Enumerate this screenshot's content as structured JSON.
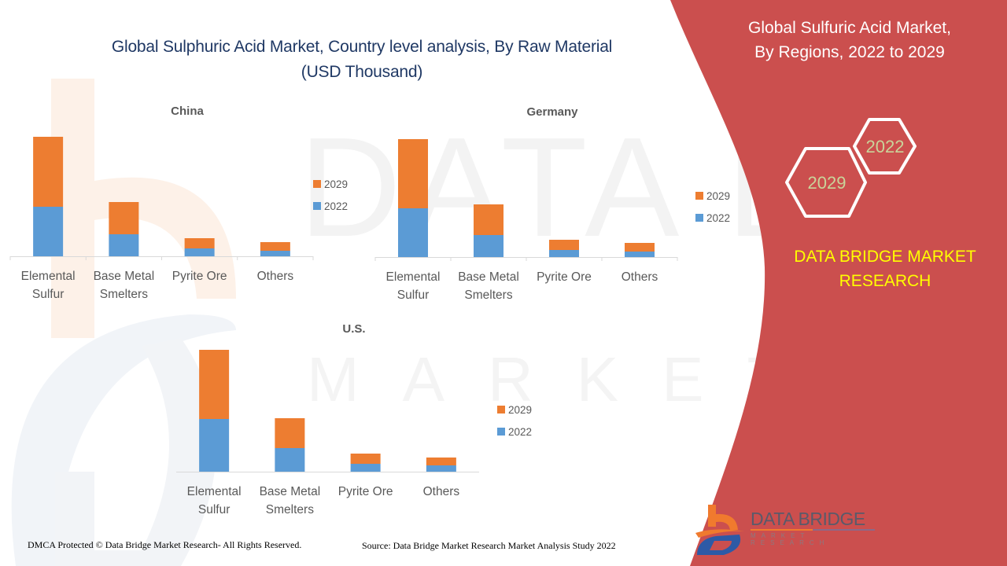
{
  "page": {
    "main_title_line1": "Global Sulphuric Acid Market, Country level analysis, By Raw Material",
    "main_title_line2": "(USD Thousand)",
    "side_title_line1": "Global Sulfuric Acid Market,",
    "side_title_line2": "By Regions, 2022 to 2029",
    "hex_labels": [
      "2022",
      "2029"
    ],
    "brand_line1": "DATA BRIDGE MARKET",
    "brand_line2": "RESEARCH",
    "logo_text": "DATA BRIDGE",
    "logo_subtext": "MARKET RESEARCH",
    "footer_left": "DMCA Protected © Data Bridge Market Research- All Rights Reserved.",
    "footer_right": "Source: Data Bridge Market Research Market Analysis Study 2022",
    "colors": {
      "panel_red": "#cb4f4e",
      "title_navy": "#1f3864",
      "brand_yellow": "#ffff00",
      "series_2022": "#5b9bd5",
      "series_2029": "#ed7d31"
    }
  },
  "chart_data": [
    {
      "type": "bar",
      "stacked": true,
      "title": "China",
      "categories": [
        "Elemental Sulfur",
        "Base Metal Smelters",
        "Pyrite Ore",
        "Others"
      ],
      "category_lines": [
        [
          "Elemental",
          "Sulfur"
        ],
        [
          "Base Metal",
          "Smelters"
        ],
        [
          "Pyrite Ore"
        ],
        [
          "Others"
        ]
      ],
      "series": [
        {
          "name": "2022",
          "color": "#5b9bd5",
          "values": [
            63,
            28,
            10,
            7
          ]
        },
        {
          "name": "2029",
          "color": "#ed7d31",
          "values": [
            89,
            41,
            13,
            11
          ]
        }
      ],
      "legend": [
        "2029",
        "2022"
      ],
      "legend_position": "right",
      "ylim": [
        0,
        160
      ],
      "xlabel": "",
      "ylabel": "",
      "grid": false,
      "ticks": true
    },
    {
      "type": "bar",
      "stacked": true,
      "title": "Germany",
      "categories": [
        "Elemental Sulfur",
        "Base Metal Smelters",
        "Pyrite Ore",
        "Others"
      ],
      "category_lines": [
        [
          "Elemental",
          "Sulfur"
        ],
        [
          "Base Metal",
          "Smelters"
        ],
        [
          "Pyrite Ore"
        ],
        [
          "Others"
        ]
      ],
      "series": [
        {
          "name": "2022",
          "color": "#5b9bd5",
          "values": [
            62,
            28,
            9,
            7
          ]
        },
        {
          "name": "2029",
          "color": "#ed7d31",
          "values": [
            88,
            39,
            13,
            11
          ]
        }
      ],
      "legend": [
        "2029",
        "2022"
      ],
      "legend_position": "right",
      "ylim": [
        0,
        160
      ],
      "xlabel": "",
      "ylabel": "",
      "grid": false,
      "ticks": true
    },
    {
      "type": "bar",
      "stacked": true,
      "title": "U.S.",
      "categories": [
        "Elemental Sulfur",
        "Base Metal Smelters",
        "Pyrite Ore",
        "Others"
      ],
      "category_lines": [
        [
          "Elemental",
          "Sulfur"
        ],
        [
          "Base Metal",
          "Smelters"
        ],
        [
          "Pyrite Ore"
        ],
        [
          "Others"
        ]
      ],
      "series": [
        {
          "name": "2022",
          "color": "#5b9bd5",
          "values": [
            67,
            30,
            10,
            8
          ]
        },
        {
          "name": "2029",
          "color": "#ed7d31",
          "values": [
            88,
            38,
            13,
            10
          ]
        }
      ],
      "legend": [
        "2029",
        "2022"
      ],
      "legend_position": "right",
      "ylim": [
        0,
        160
      ],
      "xlabel": "",
      "ylabel": "",
      "grid": false,
      "ticks": false
    }
  ]
}
